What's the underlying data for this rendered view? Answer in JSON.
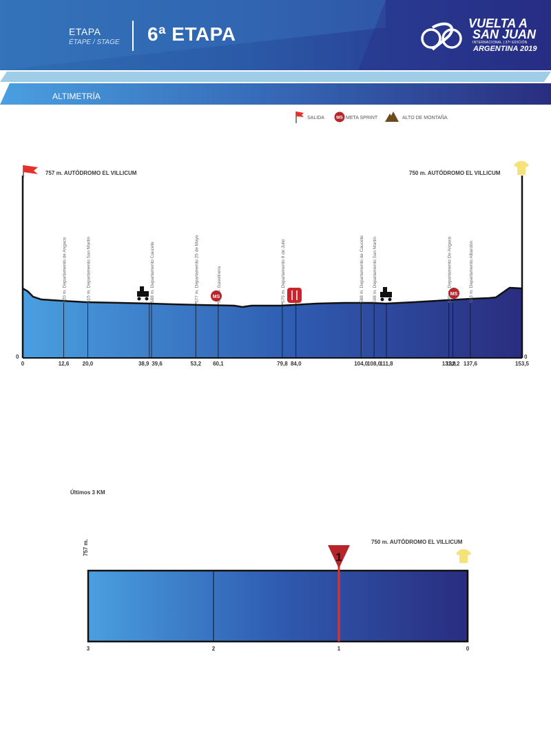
{
  "header": {
    "etapa": "ETAPA",
    "subtitle": "ÉTAPE / STAGE",
    "title": "6ª ETAPA",
    "logo": {
      "line1": "VUELTA A",
      "line2": "SAN JUAN",
      "line3": "INTERNACIONAL | 37ª EDICIÓN",
      "line4": "ARGENTINA 2019"
    }
  },
  "section_label": "ALTIMETRÍA",
  "legend": {
    "salida": "SALIDA",
    "meta_sprint": "META SPRINT",
    "alto_montana": "ALTO DE MONTAÑA",
    "ms_badge": "MS"
  },
  "colors": {
    "flag_red": "#e4312b",
    "ms_red": "#b7242a",
    "jersey_yellow": "#f6e27a",
    "profile_start": "#4a9fe0",
    "profile_end": "#2a2d7f"
  },
  "profile": {
    "start_label": "757 m. AUTÓDROMO EL VILLICUM",
    "finish_label": "750 m. AUTÓDROMO EL VILLICUM",
    "left_zero": "0",
    "right_zero": "0",
    "km_ticks": [
      "0",
      "12,6",
      "20,0",
      "38,9",
      "39,6",
      "53,2",
      "60,1",
      "79,8",
      "84,0",
      "104,0",
      "108,0",
      "111,8",
      "131,0",
      "132,2",
      "137,6",
      "153,5"
    ],
    "waypoints": [
      {
        "text": "620 m. Departamento de Angaco"
      },
      {
        "text": "615 m. Departamento San Martin"
      },
      {
        "text": "588 m. Departamento Caucete"
      },
      {
        "text": "577 m. Departamento 25 de Mayo"
      },
      {
        "text": "571 m. Gasolinera"
      },
      {
        "text": "575 m. Departamento 9 de Julio"
      },
      {
        "text": "588 m. Departamento de Caucete"
      },
      {
        "text": "598 m. Departamento San Martin"
      },
      {
        "text": "620 m. Departamento De Angaco"
      },
      {
        "text": "623 m. Departamento Albardón"
      }
    ]
  },
  "last3": {
    "title": "Últimos 3 KM",
    "altitude": "757 m.",
    "finish_label": "750 m. AUTÓDROMO EL VILLICUM",
    "km_marker": "1",
    "ticks": [
      "3",
      "2",
      "1",
      "0"
    ]
  }
}
